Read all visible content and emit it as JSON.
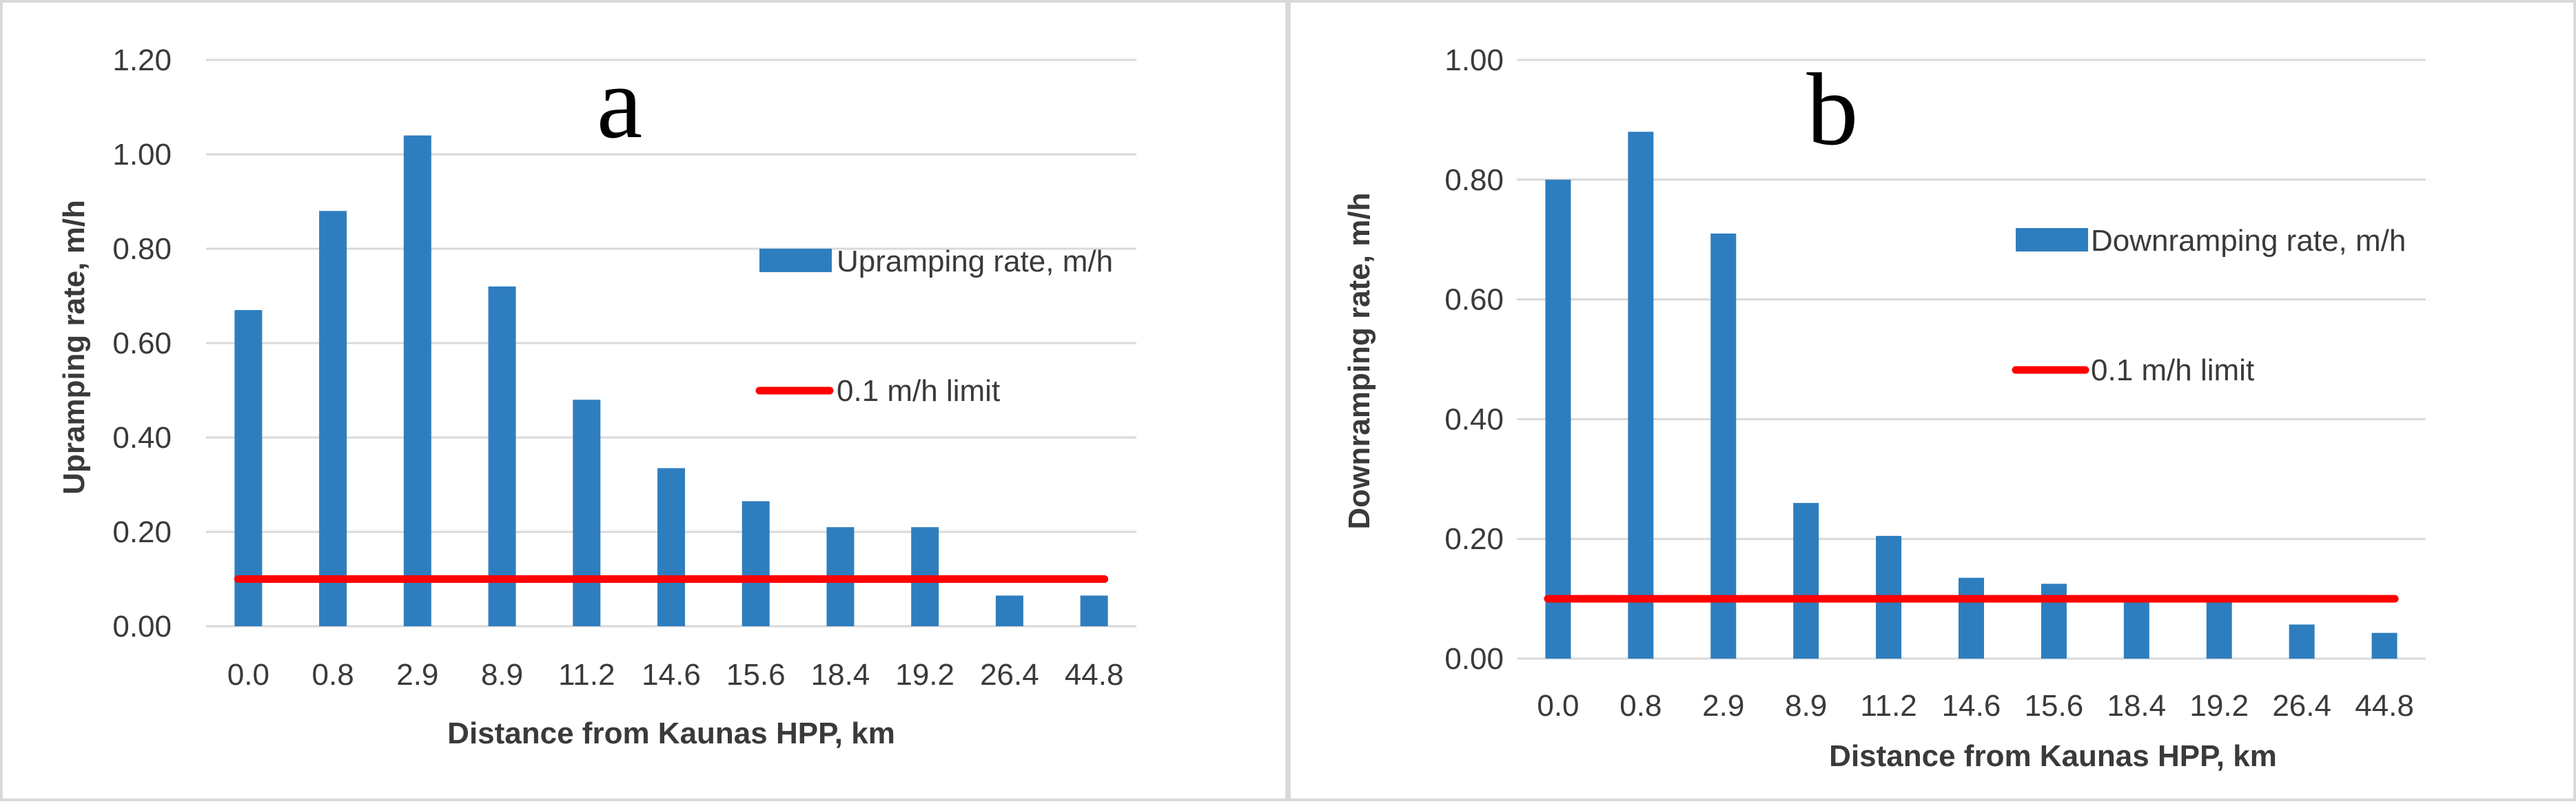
{
  "chart_data": [
    {
      "type": "bar",
      "panel_label": "a",
      "categories": [
        "0.0",
        "0.8",
        "2.9",
        "8.9",
        "11.2",
        "14.6",
        "15.6",
        "18.4",
        "19.2",
        "26.4",
        "44.8"
      ],
      "series": [
        {
          "name": "Upramping rate, m/h",
          "type": "bar",
          "color": "#2e7ebf",
          "values": [
            0.67,
            0.88,
            1.04,
            0.72,
            0.48,
            0.335,
            0.265,
            0.21,
            0.21,
            0.065,
            0.065
          ]
        },
        {
          "name": "0.1 m/h limit",
          "type": "line",
          "color": "#ff0000",
          "values": [
            0.1,
            0.1,
            0.1,
            0.1,
            0.1,
            0.1,
            0.1,
            0.1,
            0.1,
            0.1,
            0.1
          ]
        }
      ],
      "xlabel": "Distance from Kaunas HPP, km",
      "ylabel": "Upramping rate, m/h",
      "ylim": [
        0,
        1.2
      ],
      "yticks": [
        "0.00",
        "0.20",
        "0.40",
        "0.60",
        "0.80",
        "1.00",
        "1.20"
      ],
      "grid": true
    },
    {
      "type": "bar",
      "panel_label": "b",
      "categories": [
        "0.0",
        "0.8",
        "2.9",
        "8.9",
        "11.2",
        "14.6",
        "15.6",
        "18.4",
        "19.2",
        "26.4",
        "44.8"
      ],
      "series": [
        {
          "name": "Downramping rate, m/h",
          "type": "bar",
          "color": "#2e7ebf",
          "values": [
            0.8,
            0.88,
            0.71,
            0.26,
            0.205,
            0.135,
            0.125,
            0.1,
            0.1,
            0.057,
            0.043
          ]
        },
        {
          "name": "0.1 m/h limit",
          "type": "line",
          "color": "#ff0000",
          "values": [
            0.1,
            0.1,
            0.1,
            0.1,
            0.1,
            0.1,
            0.1,
            0.1,
            0.1,
            0.1,
            0.1
          ]
        }
      ],
      "xlabel": "Distance from Kaunas HPP, km",
      "ylabel": "Downramping rate, m/h",
      "ylim": [
        0,
        1.0
      ],
      "yticks": [
        "0.00",
        "0.20",
        "0.40",
        "0.60",
        "0.80",
        "1.00"
      ],
      "grid": true
    }
  ]
}
